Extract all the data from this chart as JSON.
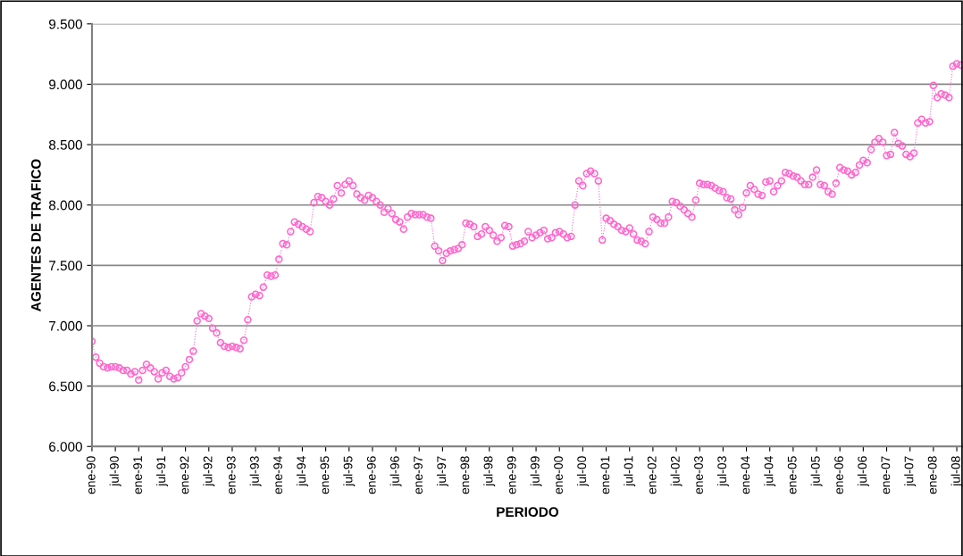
{
  "chart_data": {
    "type": "line",
    "xlabel": "PERIODO",
    "ylabel": "AGENTES DE TRAFICO",
    "categories": [
      "ene-90",
      null,
      null,
      null,
      null,
      null,
      "jul-90",
      null,
      null,
      null,
      null,
      null,
      "ene-91",
      null,
      null,
      null,
      null,
      null,
      "jul-91",
      null,
      null,
      null,
      null,
      null,
      "ene-92",
      null,
      null,
      null,
      null,
      null,
      "jul-92",
      null,
      null,
      null,
      null,
      null,
      "ene-93",
      null,
      null,
      null,
      null,
      null,
      "jul-93",
      null,
      null,
      null,
      null,
      null,
      "ene-94",
      null,
      null,
      null,
      null,
      null,
      "jul-94",
      null,
      null,
      null,
      null,
      null,
      "ene-95",
      null,
      null,
      null,
      null,
      null,
      "jul-95",
      null,
      null,
      null,
      null,
      null,
      "ene-96",
      null,
      null,
      null,
      null,
      null,
      "jul-96",
      null,
      null,
      null,
      null,
      null,
      "ene-97",
      null,
      null,
      null,
      null,
      null,
      "jul-97",
      null,
      null,
      null,
      null,
      null,
      "ene-98",
      null,
      null,
      null,
      null,
      null,
      "jul-98",
      null,
      null,
      null,
      null,
      null,
      "ene-99",
      null,
      null,
      null,
      null,
      null,
      "jul-99",
      null,
      null,
      null,
      null,
      null,
      "ene-00",
      null,
      null,
      null,
      null,
      null,
      "jul-00",
      null,
      null,
      null,
      null,
      null,
      "ene-01",
      null,
      null,
      null,
      null,
      null,
      "jul-01",
      null,
      null,
      null,
      null,
      null,
      "ene-02",
      null,
      null,
      null,
      null,
      null,
      "jul-02",
      null,
      null,
      null,
      null,
      null,
      "ene-03",
      null,
      null,
      null,
      null,
      null,
      "jul-03",
      null,
      null,
      null,
      null,
      null,
      "ene-04",
      null,
      null,
      null,
      null,
      null,
      "jul-04",
      null,
      null,
      null,
      null,
      null,
      "ene-05",
      null,
      null,
      null,
      null,
      null,
      "jul-05",
      null,
      null,
      null,
      null,
      null,
      "ene-06",
      null,
      null,
      null,
      null,
      null,
      "jul-06",
      null,
      null,
      null,
      null,
      null,
      "ene-07",
      null,
      null,
      null,
      null,
      null,
      "jul-07",
      null,
      null,
      null,
      null,
      null,
      "ene-08",
      null,
      null,
      null,
      null,
      null,
      "jul-08",
      null
    ],
    "series": [
      {
        "color": "#ff66cc",
        "values": [
          6870,
          6740,
          6690,
          6660,
          6650,
          6660,
          6660,
          6650,
          6630,
          6630,
          6600,
          6620,
          6550,
          6630,
          6680,
          6650,
          6620,
          6560,
          6610,
          6630,
          6580,
          6560,
          6570,
          6610,
          6660,
          6720,
          6790,
          7040,
          7100,
          7080,
          7060,
          6980,
          6940,
          6860,
          6830,
          6820,
          6830,
          6820,
          6810,
          6880,
          7050,
          7240,
          7260,
          7250,
          7320,
          7420,
          7410,
          7420,
          7550,
          7680,
          7670,
          7780,
          7860,
          7840,
          7820,
          7800,
          7780,
          8020,
          8070,
          8060,
          8030,
          8000,
          8050,
          8160,
          8100,
          8170,
          8200,
          8160,
          8090,
          8060,
          8040,
          8080,
          8060,
          8030,
          8000,
          7940,
          7970,
          7930,
          7880,
          7860,
          7800,
          7900,
          7930,
          7920,
          7920,
          7920,
          7900,
          7890,
          7660,
          7620,
          7540,
          7600,
          7620,
          7630,
          7640,
          7670,
          7850,
          7840,
          7820,
          7740,
          7760,
          7820,
          7790,
          7750,
          7700,
          7730,
          7830,
          7820,
          7660,
          7670,
          7680,
          7700,
          7780,
          7730,
          7750,
          7770,
          7790,
          7720,
          7730,
          7770,
          7780,
          7760,
          7730,
          7740,
          8000,
          8200,
          8160,
          8260,
          8280,
          8260,
          8200,
          7710,
          7890,
          7870,
          7840,
          7820,
          7790,
          7780,
          7810,
          7760,
          7710,
          7700,
          7680,
          7780,
          7900,
          7880,
          7850,
          7850,
          7900,
          8030,
          8020,
          7990,
          7960,
          7930,
          7900,
          8040,
          8180,
          8170,
          8170,
          8160,
          8140,
          8120,
          8110,
          8060,
          8050,
          7960,
          7920,
          7980,
          8100,
          8160,
          8130,
          8090,
          8080,
          8190,
          8200,
          8110,
          8160,
          8200,
          8270,
          8260,
          8240,
          8230,
          8200,
          8170,
          8170,
          8230,
          8290,
          8170,
          8160,
          8110,
          8090,
          8180,
          8310,
          8290,
          8280,
          8250,
          8270,
          8330,
          8370,
          8350,
          8460,
          8520,
          8550,
          8520,
          8410,
          8420,
          8600,
          8510,
          8490,
          8420,
          8400,
          8430,
          8680,
          8710,
          8680,
          8690,
          8990,
          8890,
          8920,
          8910,
          8890,
          9150,
          9170,
          9160
        ]
      }
    ],
    "ylim": [
      6000,
      9500
    ],
    "yticks": [
      {
        "value": 6000,
        "label": "6.000"
      },
      {
        "value": 6500,
        "label": "6.500"
      },
      {
        "value": 7000,
        "label": "7.000"
      },
      {
        "value": 7500,
        "label": "7.500"
      },
      {
        "value": 8000,
        "label": "8.000"
      },
      {
        "value": 8500,
        "label": "8.500"
      },
      {
        "value": 9000,
        "label": "9.000"
      },
      {
        "value": 9500,
        "label": "9.500"
      }
    ],
    "grid": "y",
    "legend": false,
    "marker": "circle",
    "line_style": "dotted"
  }
}
